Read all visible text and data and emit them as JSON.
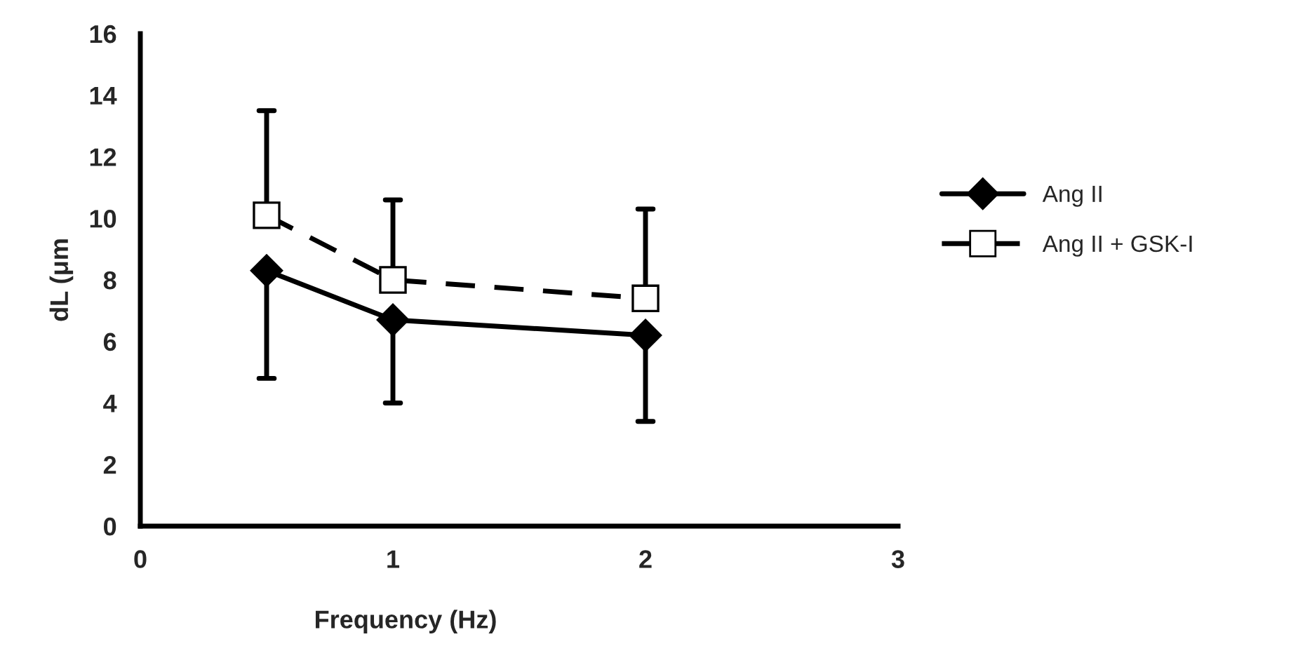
{
  "chart_data": {
    "type": "line",
    "xlabel": "Frequency (Hz)",
    "ylabel": "dL (μm",
    "x": [
      0.5,
      1,
      2
    ],
    "series": [
      {
        "name": "Ang II",
        "color": "#000000",
        "values": [
          8.3,
          6.7,
          6.2
        ],
        "marker": "diamond",
        "line_style": "solid",
        "errors": [
          [
            4.8,
            8.3
          ],
          [
            4.0,
            6.7
          ],
          [
            3.4,
            6.2
          ]
        ]
      },
      {
        "name": "Ang II + GSK-I",
        "color": "#000000",
        "values": [
          10.1,
          8.0,
          7.4
        ],
        "marker": "square",
        "line_style": "dashed",
        "errors": [
          [
            10.1,
            13.5
          ],
          [
            8.0,
            10.6
          ],
          [
            7.4,
            10.3
          ]
        ]
      }
    ],
    "xlim": [
      0,
      3
    ],
    "xticks": [
      0,
      1,
      2,
      3
    ],
    "ylim": [
      0,
      16
    ],
    "yticks": [
      0,
      2,
      4,
      6,
      8,
      10,
      12,
      14,
      16
    ],
    "legend": "right",
    "grid": false
  }
}
